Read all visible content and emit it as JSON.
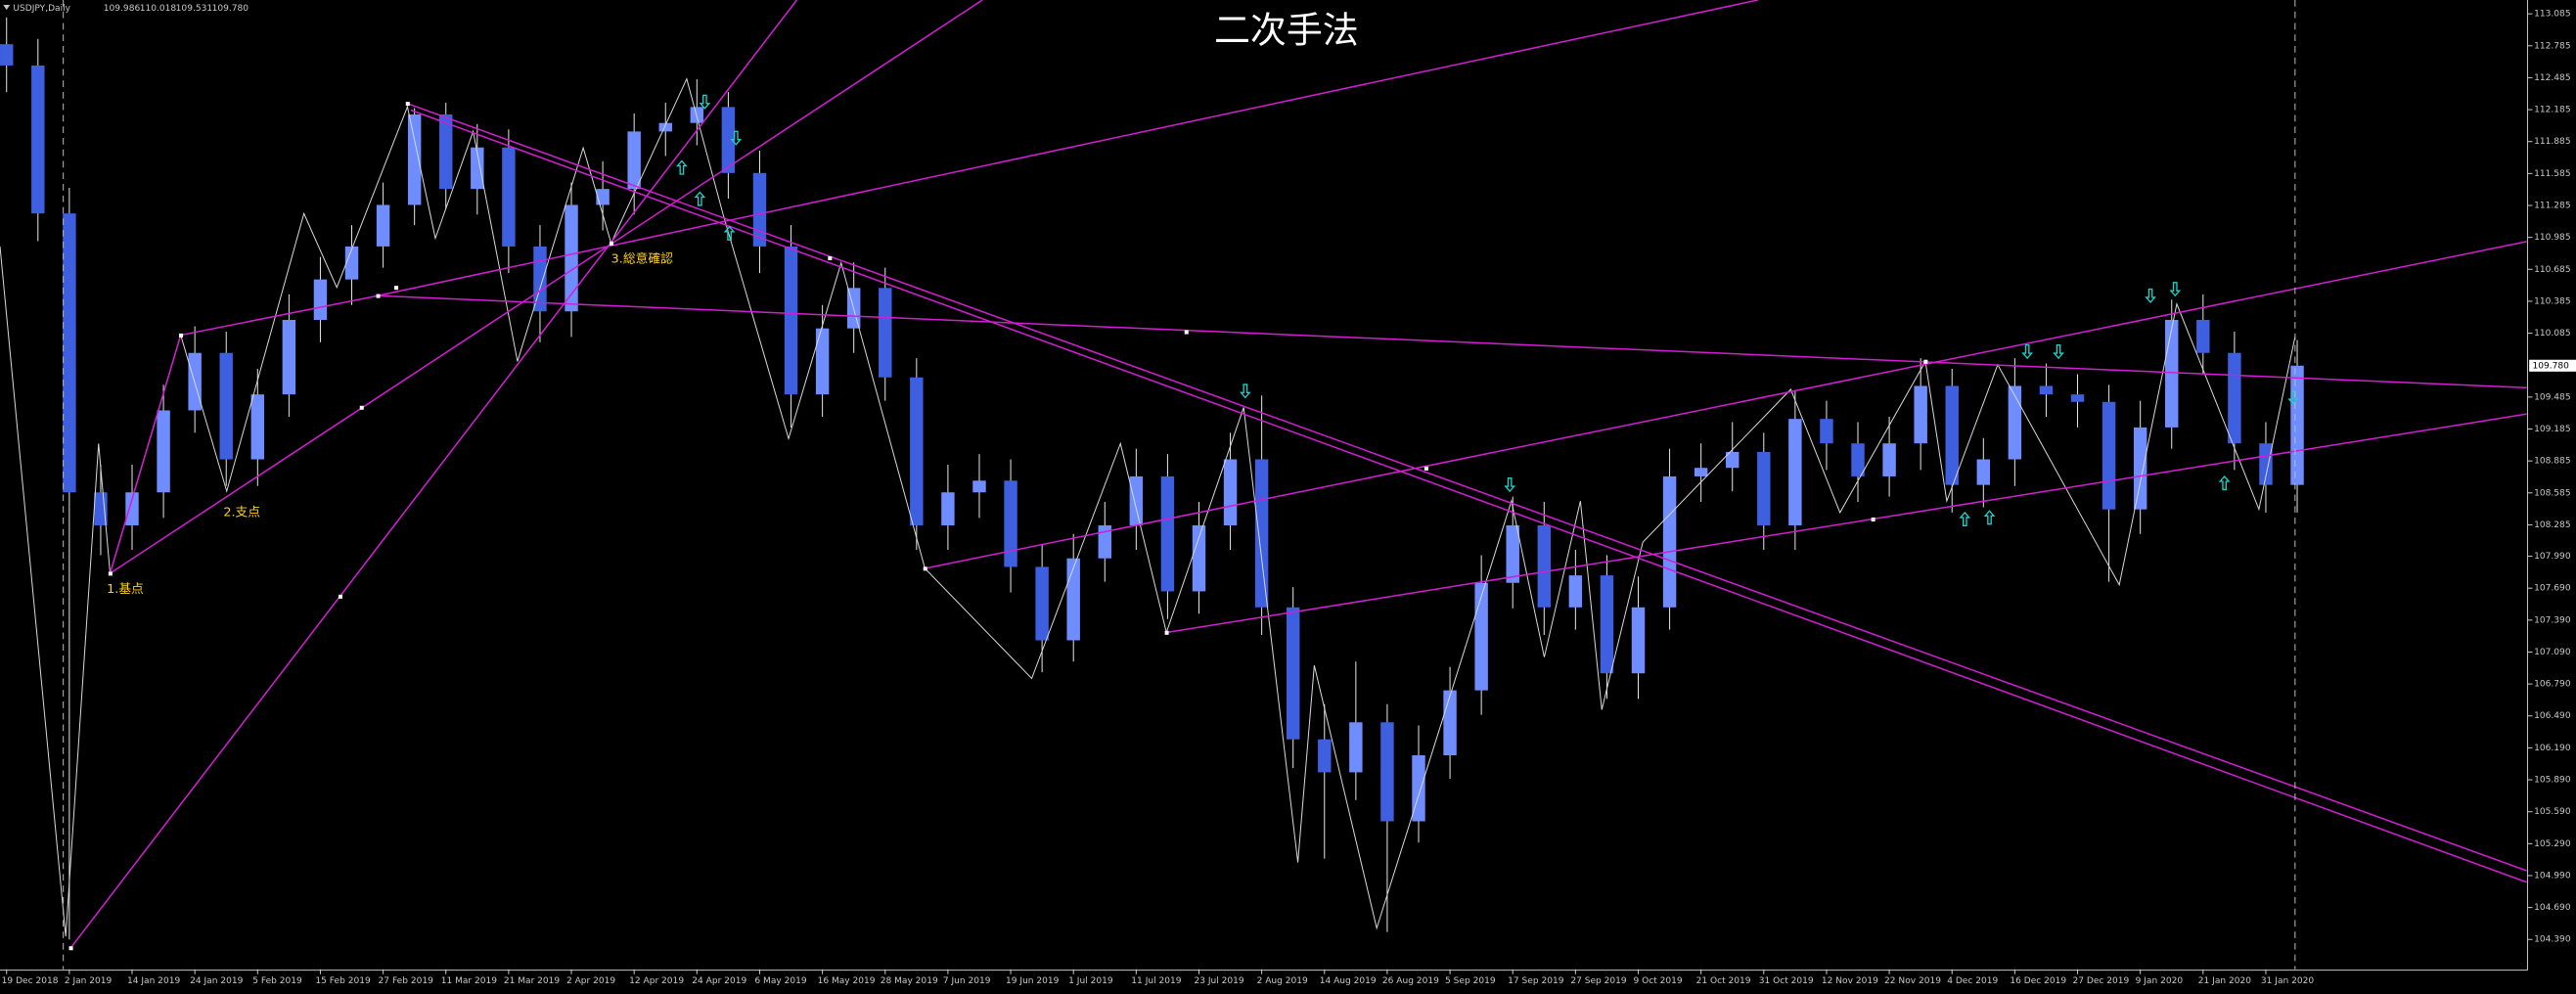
{
  "chart_data": {
    "type": "candlestick",
    "title": "二次手法",
    "symbol": "USDJPY,Daily",
    "quote": [
      "109.986",
      "110.018",
      "109.531",
      "109.780"
    ],
    "categories": [
      "19 Dec 2018",
      null,
      "2 Jan 2019",
      null,
      "14 Jan 2019",
      null,
      "24 Jan 2019",
      null,
      "5 Feb 2019",
      null,
      "15 Feb 2019",
      null,
      "27 Feb 2019",
      null,
      "11 Mar 2019",
      null,
      "21 Mar 2019",
      null,
      "2 Apr 2019",
      null,
      "12 Apr 2019",
      null,
      "24 Apr 2019",
      null,
      "6 May 2019",
      null,
      "16 May 2019",
      null,
      "28 May 2019",
      null,
      "7 Jun 2019",
      null,
      "19 Jun 2019",
      null,
      "1 Jul 2019",
      null,
      "11 Jul 2019",
      null,
      "23 Jul 2019",
      null,
      "2 Aug 2019",
      null,
      "14 Aug 2019",
      null,
      "26 Aug 2019",
      null,
      "5 Sep 2019",
      null,
      "17 Sep 2019",
      null,
      "27 Sep 2019",
      null,
      "9 Oct 2019",
      null,
      "21 Oct 2019",
      null,
      "31 Oct 2019",
      null,
      "12 Nov 2019",
      null,
      "22 Nov 2019",
      null,
      "4 Dec 2019",
      null,
      "16 Dec 2019",
      null,
      "27 Dec 2019",
      null,
      "9 Jan 2020",
      null,
      "21 Jan 2020",
      null,
      "31 Jan 2020",
      null
    ],
    "open": [
      112.8,
      112.6,
      111.21,
      108.59,
      108.28,
      108.59,
      109.36,
      109.9,
      108.9,
      109.51,
      110.21,
      110.59,
      110.9,
      111.29,
      112.14,
      111.44,
      111.83,
      110.9,
      110.29,
      111.29,
      111.44,
      111.98,
      112.06,
      112.21,
      111.59,
      110.9,
      109.51,
      110.13,
      110.51,
      109.67,
      108.28,
      108.59,
      108.7,
      107.89,
      107.2,
      107.97,
      108.28,
      108.74,
      107.66,
      108.28,
      108.9,
      107.51,
      106.27,
      105.96,
      106.43,
      105.5,
      106.12,
      106.73,
      107.74,
      108.28,
      107.51,
      107.81,
      106.89,
      107.51,
      108.74,
      108.82,
      108.97,
      108.28,
      109.28,
      109.05,
      108.74,
      109.05,
      109.59,
      108.66,
      108.9,
      109.59,
      109.51,
      109.44,
      108.43,
      109.2,
      110.21,
      109.9,
      109.05,
      108.66
    ],
    "high": [
      113.05,
      112.85,
      111.45,
      108.85,
      108.85,
      109.6,
      110.15,
      110.1,
      109.75,
      110.45,
      110.8,
      111.1,
      111.5,
      112.2,
      112.25,
      112.05,
      112.0,
      111.1,
      111.5,
      111.7,
      112.15,
      112.25,
      112.47,
      112.35,
      111.8,
      111.1,
      110.35,
      110.75,
      110.7,
      109.85,
      108.85,
      108.95,
      108.9,
      108.1,
      108.2,
      108.5,
      109.0,
      108.95,
      108.5,
      109.15,
      109.5,
      107.7,
      106.6,
      107.0,
      106.6,
      106.4,
      106.95,
      108.0,
      108.55,
      108.5,
      108.05,
      108.0,
      107.8,
      109.0,
      109.05,
      109.25,
      109.15,
      109.55,
      109.45,
      109.25,
      109.3,
      109.85,
      109.75,
      109.1,
      109.85,
      109.8,
      109.7,
      109.6,
      109.45,
      110.4,
      110.45,
      110.1,
      109.25,
      110.02
    ],
    "low": [
      112.35,
      110.95,
      104.39,
      108.0,
      108.05,
      108.35,
      109.15,
      108.65,
      108.65,
      109.3,
      110.0,
      110.35,
      110.7,
      111.1,
      111.25,
      111.2,
      110.65,
      110.0,
      110.05,
      111.05,
      111.2,
      111.75,
      111.85,
      111.35,
      110.65,
      109.2,
      109.3,
      109.9,
      109.45,
      108.05,
      108.05,
      108.35,
      107.65,
      106.9,
      107.0,
      107.75,
      108.05,
      107.4,
      107.45,
      108.05,
      107.25,
      106.0,
      105.15,
      105.7,
      104.46,
      105.3,
      105.9,
      106.5,
      107.5,
      107.25,
      107.3,
      106.65,
      106.65,
      107.3,
      108.5,
      108.6,
      108.05,
      108.05,
      108.8,
      108.5,
      108.55,
      108.8,
      108.4,
      108.45,
      108.65,
      109.3,
      109.2,
      107.75,
      108.2,
      109.0,
      109.7,
      108.8,
      108.4,
      108.4
    ],
    "close": [
      112.6,
      111.21,
      108.59,
      108.28,
      108.59,
      109.36,
      109.9,
      108.9,
      109.51,
      110.21,
      110.59,
      110.9,
      111.29,
      112.14,
      111.44,
      111.83,
      110.9,
      110.29,
      111.29,
      111.44,
      111.98,
      112.06,
      112.21,
      111.59,
      110.9,
      109.51,
      110.13,
      110.51,
      109.67,
      108.28,
      108.59,
      108.7,
      107.89,
      107.2,
      107.97,
      108.28,
      108.74,
      107.66,
      108.28,
      108.9,
      107.51,
      106.27,
      105.96,
      106.43,
      105.5,
      106.12,
      106.73,
      107.74,
      108.28,
      107.51,
      107.81,
      106.89,
      107.51,
      108.74,
      108.82,
      108.97,
      108.28,
      109.28,
      109.05,
      108.74,
      109.05,
      109.59,
      108.66,
      108.9,
      109.59,
      109.51,
      109.44,
      108.43,
      109.2,
      110.21,
      109.9,
      109.05,
      108.66,
      109.78
    ],
    "up_color": "#6f8dff",
    "down_color": "#3d5fe0",
    "ylim": [
      104.11,
      113.215
    ],
    "yticks": [
      113.085,
      112.785,
      112.485,
      112.185,
      111.885,
      111.585,
      111.285,
      110.985,
      110.685,
      110.385,
      110.085,
      109.485,
      109.185,
      108.885,
      108.585,
      108.285,
      {
        "value": 107.99,
        "label": "107.990"
      },
      {
        "value": 107.69,
        "label": "107.690"
      },
      {
        "value": 107.39,
        "label": "107.390"
      },
      {
        "value": 107.09,
        "label": "107.090"
      },
      {
        "value": 106.79,
        "label": "106.790"
      },
      {
        "value": 106.49,
        "label": "106.490"
      },
      {
        "value": 106.19,
        "label": "106.190"
      },
      {
        "value": 105.89,
        "label": "105.890"
      },
      {
        "value": 105.59,
        "label": "105.590"
      },
      {
        "value": 105.29,
        "label": "105.290"
      },
      {
        "value": 104.99,
        "label": "104.990"
      },
      {
        "value": 104.69,
        "label": "104.690"
      },
      {
        "value": 104.39,
        "label": "104.390"
      }
    ],
    "last_price": {
      "value": 109.78,
      "label": "109.780"
    },
    "annotations": [
      "1.基点",
      "2.支点",
      "3.総意確認"
    ]
  }
}
